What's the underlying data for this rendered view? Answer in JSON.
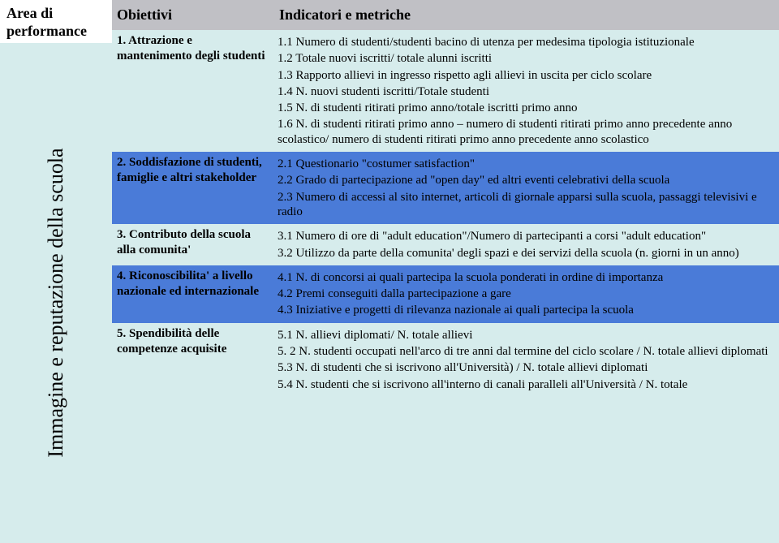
{
  "area_title": "Area di performance",
  "vertical_label": "Immagine e reputazione della scuola",
  "header": {
    "obiettivi": "Obiettivi",
    "indicatori": "Indicatori e metriche"
  },
  "rows": [
    {
      "bg": "light",
      "objective": "1. Attrazione e mantenimento degli studenti",
      "indicators": [
        "1.1 Numero di studenti/studenti bacino di utenza per medesima tipologia istituzionale",
        "1.2 Totale nuovi iscritti/ totale alunni iscritti",
        "1.3 Rapporto allievi in ingresso rispetto agli allievi in uscita per ciclo scolare",
        "1.4 N. nuovi studenti iscritti/Totale studenti",
        "1.5 N. di studenti ritirati primo anno/totale iscritti primo anno",
        "1.6 N. di studenti ritirati primo anno – numero di studenti ritirati primo anno precedente anno scolastico/ numero di studenti ritirati primo anno precedente anno scolastico"
      ]
    },
    {
      "bg": "blue",
      "objective": "2. Soddisfazione di studenti, famiglie e altri stakeholder",
      "indicators": [
        "2.1 Questionario \"costumer satisfaction\"",
        "2.2 Grado di partecipazione ad \"open day\" ed altri eventi celebrativi della scuola",
        "2.3 Numero di accessi al sito internet, articoli di giornale apparsi sulla scuola, passaggi televisivi e radio"
      ]
    },
    {
      "bg": "light",
      "objective": "3. Contributo della scuola alla comunita'",
      "indicators": [
        "3.1 Numero di ore di \"adult education\"/Numero di partecipanti a corsi \"adult education\"",
        "3.2 Utilizzo da parte della comunita' degli spazi e dei servizi della scuola (n. giorni in un anno)"
      ]
    },
    {
      "bg": "blue",
      "objective": "4. Riconoscibilita' a livello nazionale ed internazionale",
      "indicators": [
        "4.1 N. di concorsi ai quali partecipa la scuola ponderati in ordine di importanza",
        "4.2 Premi conseguiti dalla partecipazione a gare",
        "4.3 Iniziative e progetti di rilevanza nazionale ai quali partecipa la scuola"
      ]
    },
    {
      "bg": "light",
      "objective": "5. Spendibilità delle competenze acquisite",
      "indicators": [
        "5.1 N. allievi diplomati/ N. totale allievi",
        "5. 2 N. studenti occupati nell'arco di tre anni dal termine del ciclo scolare / N. totale allievi diplomati",
        "5.3 N. di studenti che si iscrivono all'Università) / N. totale allievi diplomati",
        "5.4 N. studenti che si iscrivono all'interno di canali paralleli all'Università / N. totale"
      ]
    }
  ],
  "colors": {
    "header_bg": "#c0c0c5",
    "light_bg": "#d6ecec",
    "blue_bg": "#4a7bd8",
    "text": "#000000"
  }
}
